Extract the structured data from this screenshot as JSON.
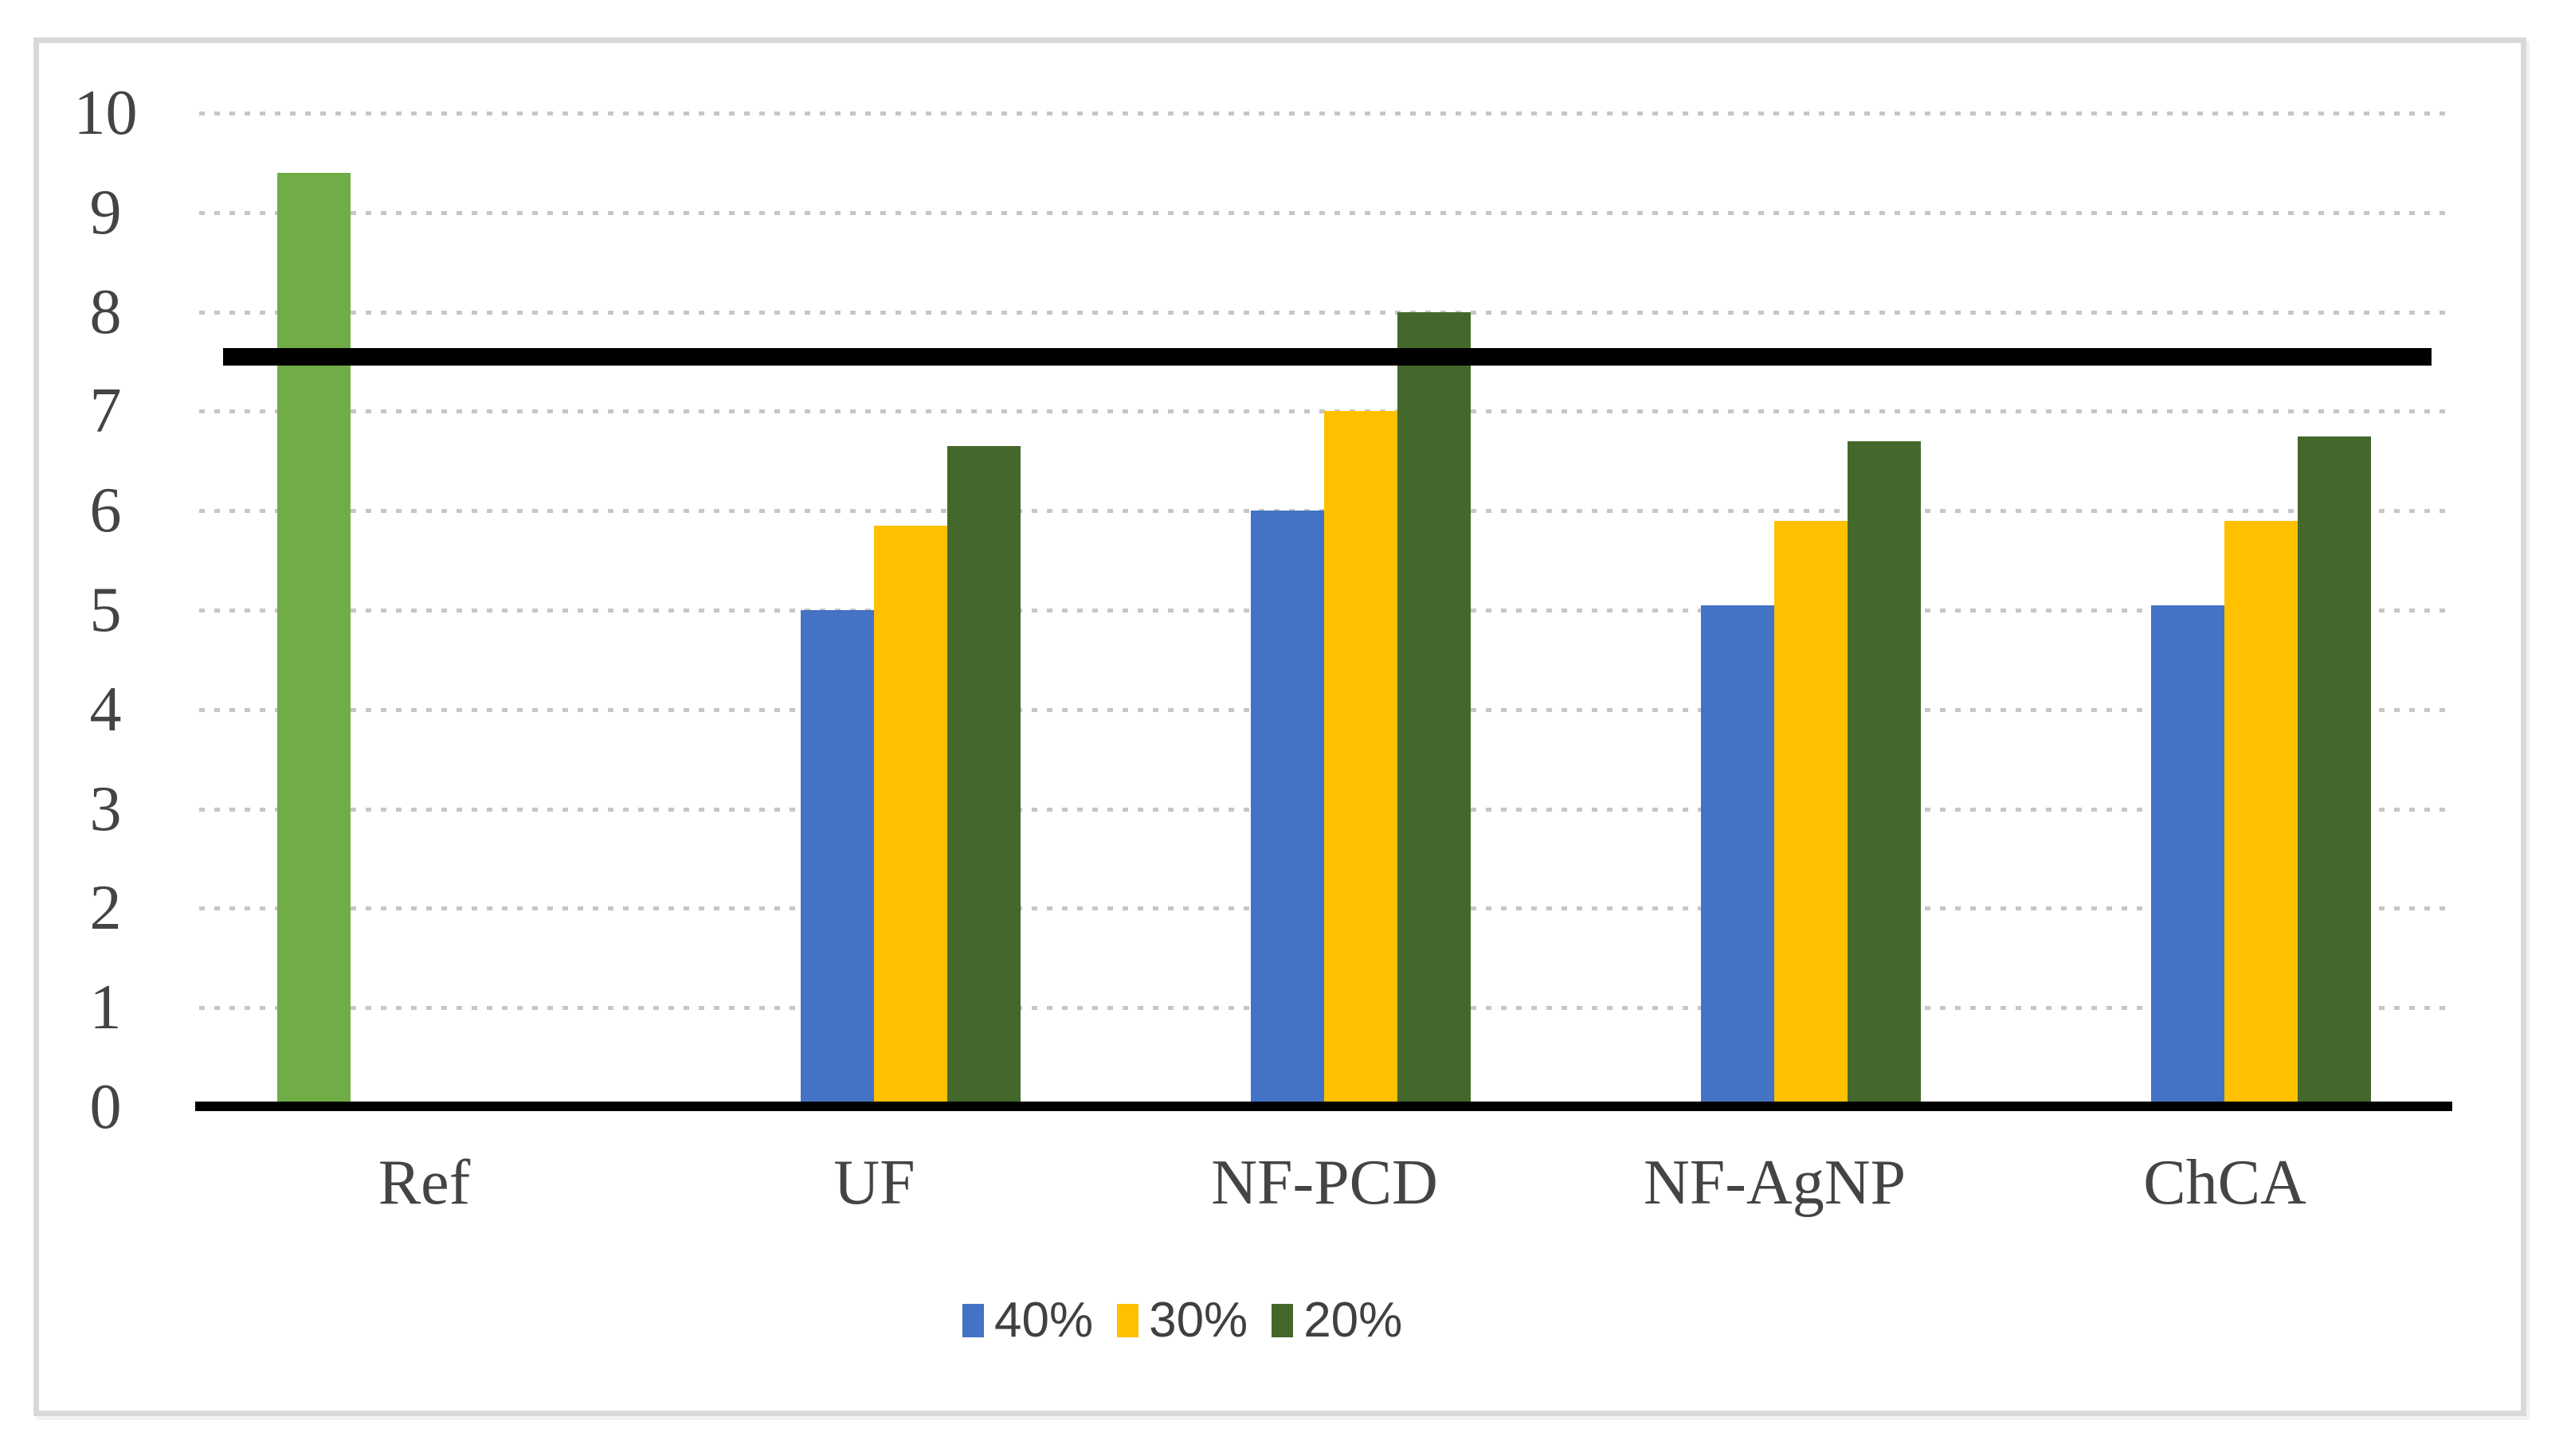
{
  "chart_data": {
    "type": "bar",
    "title": "",
    "xlabel": "",
    "ylabel": "",
    "categories": [
      "Ref",
      "UF",
      "NF-PCD",
      "NF-AgNP",
      "ChCA"
    ],
    "series": [
      {
        "name": "Ref",
        "color": "#70AD47",
        "in_legend": false,
        "values": [
          9.4,
          null,
          null,
          null,
          null
        ]
      },
      {
        "name": "40%",
        "color": "#4472C4",
        "in_legend": true,
        "values": [
          null,
          5.0,
          6.0,
          5.05,
          5.05
        ]
      },
      {
        "name": "30%",
        "color": "#FFC000",
        "in_legend": true,
        "values": [
          null,
          5.85,
          7.0,
          5.9,
          5.9
        ]
      },
      {
        "name": "20%",
        "color": "#44682B",
        "in_legend": true,
        "values": [
          null,
          6.65,
          8.0,
          6.7,
          6.75
        ]
      }
    ],
    "reference_line": {
      "value": 7.55,
      "color": "#000000"
    },
    "ylim": [
      0,
      10
    ],
    "yticks": [
      0,
      1,
      2,
      3,
      4,
      5,
      6,
      7,
      8,
      9,
      10
    ],
    "grid": "dotted horizontal gridlines",
    "legend_position": "bottom",
    "legend_entries": [
      "40%",
      "30%",
      "20%"
    ],
    "colors": {
      "axis_text": "#444444",
      "gridline": "#c6c6c6",
      "axis_line": "#000000",
      "frame_border": "#d9d9d9",
      "background": "#ffffff"
    }
  }
}
